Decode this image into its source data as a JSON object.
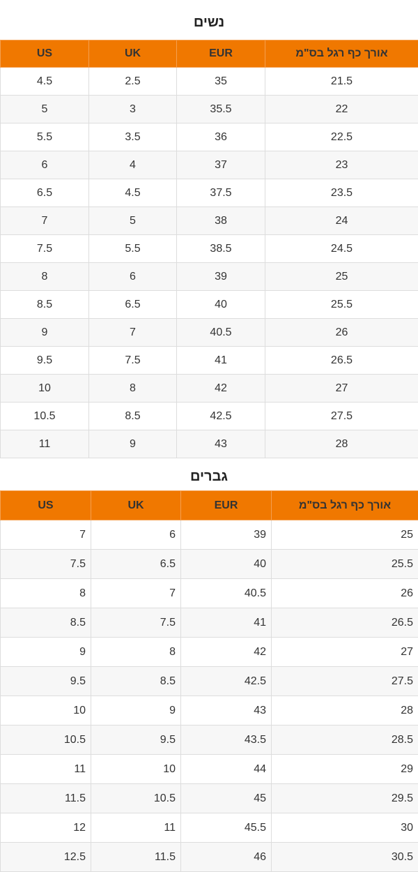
{
  "women": {
    "title": "נשים",
    "headers": [
      "US",
      "UK",
      "EUR",
      "אורך כף רגל בס\"מ"
    ],
    "rows": [
      [
        "4.5",
        "2.5",
        "35",
        "21.5"
      ],
      [
        "5",
        "3",
        "35.5",
        "22"
      ],
      [
        "5.5",
        "3.5",
        "36",
        "22.5"
      ],
      [
        "6",
        "4",
        "37",
        "23"
      ],
      [
        "6.5",
        "4.5",
        "37.5",
        "23.5"
      ],
      [
        "7",
        "5",
        "38",
        "24"
      ],
      [
        "7.5",
        "5.5",
        "38.5",
        "24.5"
      ],
      [
        "8",
        "6",
        "39",
        "25"
      ],
      [
        "8.5",
        "6.5",
        "40",
        "25.5"
      ],
      [
        "9",
        "7",
        "40.5",
        "26"
      ],
      [
        "9.5",
        "7.5",
        "41",
        "26.5"
      ],
      [
        "10",
        "8",
        "42",
        "27"
      ],
      [
        "10.5",
        "8.5",
        "42.5",
        "27.5"
      ],
      [
        "11",
        "9",
        "43",
        "28"
      ]
    ]
  },
  "men": {
    "title": "גברים",
    "headers": [
      "US",
      "UK",
      "EUR",
      "אורך כף רגל בס\"מ"
    ],
    "rows": [
      [
        "7",
        "6",
        "39",
        "25"
      ],
      [
        "7.5",
        "6.5",
        "40",
        "25.5"
      ],
      [
        "8",
        "7",
        "40.5",
        "26"
      ],
      [
        "8.5",
        "7.5",
        "41",
        "26.5"
      ],
      [
        "9",
        "8",
        "42",
        "27"
      ],
      [
        "9.5",
        "8.5",
        "42.5",
        "27.5"
      ],
      [
        "10",
        "9",
        "43",
        "28"
      ],
      [
        "10.5",
        "9.5",
        "43.5",
        "28.5"
      ],
      [
        "11",
        "10",
        "44",
        "29"
      ],
      [
        "11.5",
        "10.5",
        "45",
        "29.5"
      ],
      [
        "12",
        "11",
        "45.5",
        "30"
      ],
      [
        "12.5",
        "11.5",
        "46",
        "30.5"
      ]
    ]
  }
}
